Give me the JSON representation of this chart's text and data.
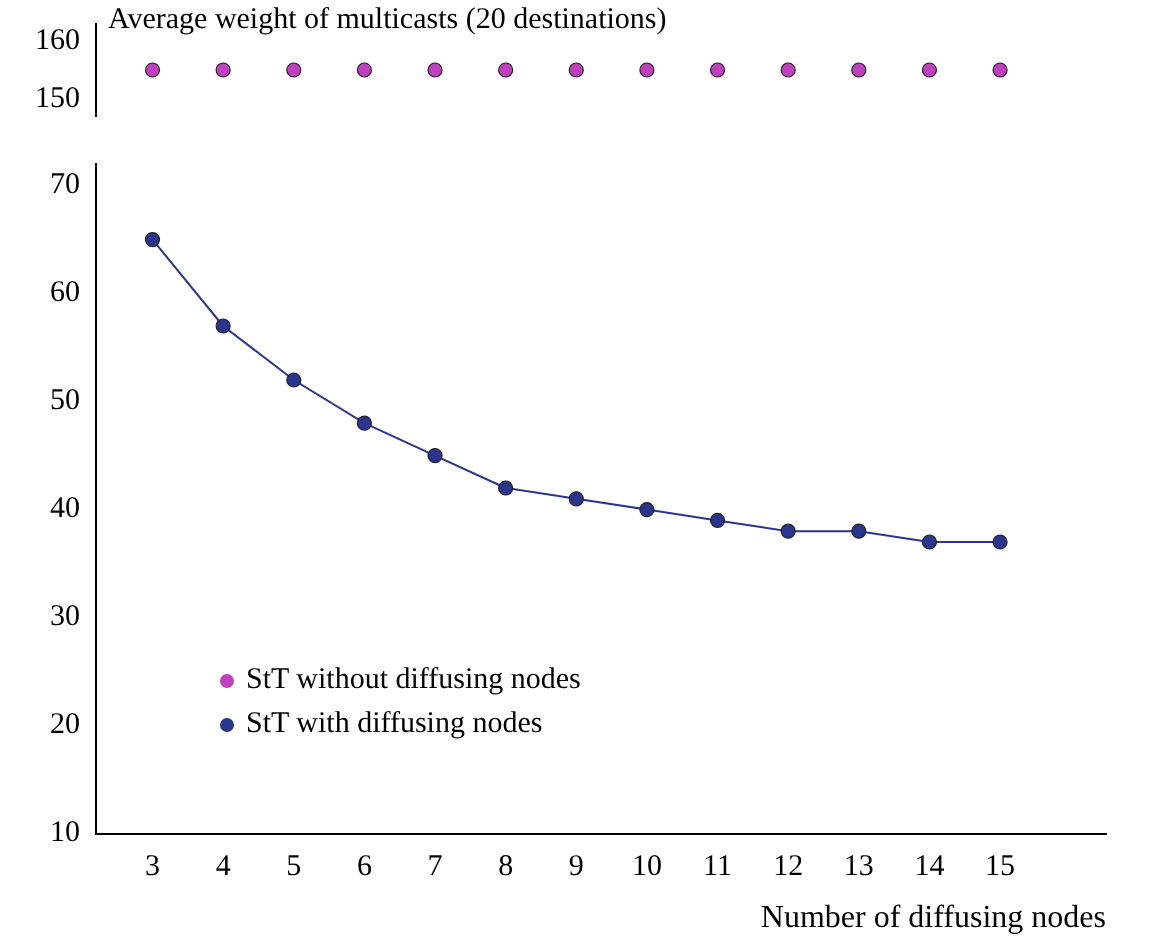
{
  "chart_data": [
    {
      "type": "scatter",
      "ylabel": "Average weight of multicasts (20 destinations)",
      "x": [
        3,
        4,
        5,
        6,
        7,
        8,
        9,
        10,
        11,
        12,
        13,
        14,
        15
      ],
      "ylim": [
        147,
        163
      ],
      "yticks": [
        150,
        160
      ],
      "tick_labels": "y",
      "grid": false,
      "legend": "bottom left",
      "marker": "circle",
      "series": [
        {
          "name": "StT without diffusing nodes",
          "color": "#c040c0",
          "values": [
            155,
            155,
            155,
            155,
            155,
            155,
            155,
            155,
            155,
            155,
            155,
            155,
            155
          ]
        }
      ]
    },
    {
      "type": "line",
      "xlabel": "Number of diffusing nodes",
      "x": [
        3,
        4,
        5,
        6,
        7,
        8,
        9,
        10,
        11,
        12,
        13,
        14,
        15
      ],
      "xlim": [
        2.2,
        16.5
      ],
      "xticks": [
        3,
        4,
        5,
        6,
        7,
        8,
        9,
        10,
        11,
        12,
        13,
        14,
        15
      ],
      "ylim": [
        10,
        72
      ],
      "yticks": [
        10,
        20,
        30,
        40,
        50,
        60,
        70
      ],
      "grid": false,
      "legend": "bottom left",
      "marker": "circle",
      "line_style": "solid",
      "series": [
        {
          "name": "StT with diffusing nodes",
          "color": "#2a3590",
          "values": [
            65,
            57,
            52,
            48,
            45,
            42,
            41,
            40,
            39,
            38,
            38,
            37,
            37
          ]
        }
      ]
    }
  ]
}
